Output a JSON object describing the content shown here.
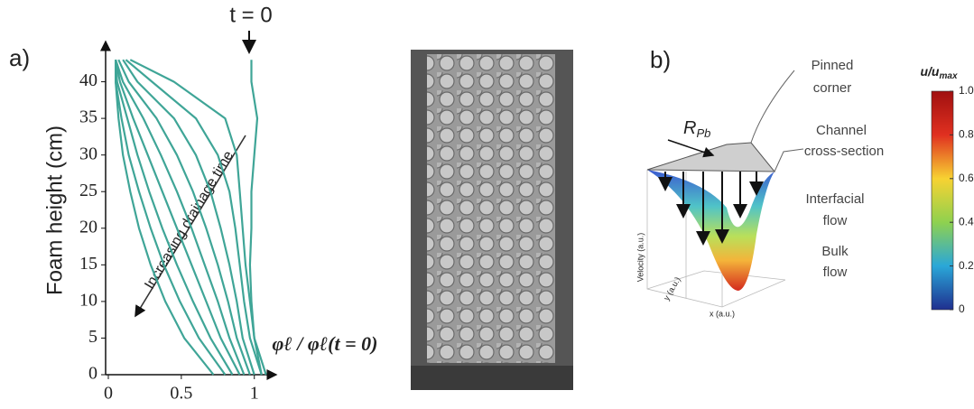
{
  "chart_data": [
    {
      "type": "line",
      "label": "a)",
      "ylabel": "Foam height (cm)",
      "xlabel": "φℓ / φℓ(t = 0)",
      "annotations": {
        "start": "t = 0",
        "arrow": "Increasing drainage time"
      },
      "y": [
        0,
        5,
        10,
        15,
        20,
        25,
        30,
        35,
        40,
        43
      ],
      "xlim": [
        0,
        1.15
      ],
      "ylim": [
        0,
        45
      ],
      "xticks": [
        0,
        0.5,
        1
      ],
      "yticks": [
        0,
        5,
        10,
        15,
        20,
        25,
        30,
        35,
        40
      ],
      "color": "#3fa597",
      "series": [
        {
          "values": [
            1.05,
            1.0,
            0.98,
            0.97,
            0.98,
            0.98,
            1.0,
            1.02,
            0.98,
            0.98
          ]
        },
        {
          "values": [
            1.08,
            1.0,
            0.97,
            0.94,
            0.92,
            0.9,
            0.88,
            0.8,
            0.45,
            0.15
          ]
        },
        {
          "values": [
            1.05,
            0.97,
            0.93,
            0.9,
            0.87,
            0.83,
            0.75,
            0.6,
            0.3,
            0.12
          ]
        },
        {
          "values": [
            1.0,
            0.92,
            0.88,
            0.83,
            0.77,
            0.7,
            0.6,
            0.45,
            0.2,
            0.1
          ]
        },
        {
          "values": [
            0.97,
            0.88,
            0.82,
            0.75,
            0.67,
            0.58,
            0.47,
            0.33,
            0.14,
            0.07
          ]
        },
        {
          "values": [
            0.93,
            0.83,
            0.75,
            0.66,
            0.57,
            0.47,
            0.36,
            0.24,
            0.1,
            0.05
          ]
        },
        {
          "values": [
            0.9,
            0.77,
            0.67,
            0.57,
            0.47,
            0.37,
            0.27,
            0.17,
            0.08,
            0.05
          ]
        },
        {
          "values": [
            0.85,
            0.7,
            0.58,
            0.47,
            0.37,
            0.28,
            0.2,
            0.13,
            0.06,
            0.05
          ]
        },
        {
          "values": [
            0.8,
            0.62,
            0.49,
            0.38,
            0.29,
            0.21,
            0.14,
            0.09,
            0.05,
            0.05
          ]
        },
        {
          "values": [
            0.72,
            0.52,
            0.39,
            0.29,
            0.21,
            0.15,
            0.1,
            0.07,
            0.05,
            0.05
          ]
        }
      ]
    },
    {
      "type": "colorbar",
      "title": "u/u",
      "title_sub": "max",
      "ylim": [
        0,
        1
      ],
      "yticks": [
        0,
        0.2,
        0.4,
        0.6,
        0.8,
        {
          "value": 1,
          "label": "1.0"
        }
      ],
      "colors": [
        "#1f2f8f",
        "#2aa7d8",
        "#8fd14f",
        "#f7d232",
        "#e03020",
        "#a01010"
      ]
    }
  ],
  "diagram": {
    "label": "b)",
    "pinned": [
      "Pinned",
      "corner"
    ],
    "radius": "R",
    "radius_sub": "Pb",
    "channel": [
      "Channel",
      "cross-section"
    ],
    "interfacial": [
      "Interfacial",
      "flow"
    ],
    "bulk": [
      "Bulk",
      "flow"
    ],
    "velocity": "Velocity (a.u.)",
    "yaxis": "y (a.u.)",
    "xaxis": "x (a.u.)"
  }
}
